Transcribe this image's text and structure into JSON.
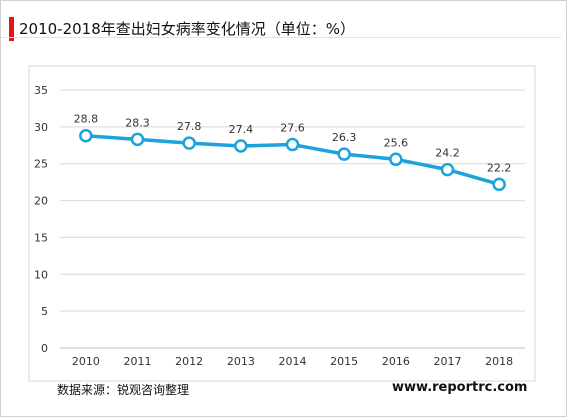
{
  "header": {
    "title": "2010-2018年查出妇女病率变化情况（单位：%）",
    "accent_color": "#e0161b"
  },
  "footer": {
    "source": "数据来源：锐观咨询整理",
    "website": "www.reportrc.com"
  },
  "chart_data": {
    "type": "line",
    "title": "2010-2018年查出妇女病率变化情况（单位：%）",
    "xlabel": "",
    "ylabel": "",
    "categories": [
      "2010",
      "2011",
      "2012",
      "2013",
      "2014",
      "2015",
      "2016",
      "2017",
      "2018"
    ],
    "series": [
      {
        "values": [
          28.8,
          28.3,
          27.8,
          27.4,
          27.6,
          26.3,
          25.6,
          24.2,
          22.2
        ],
        "color": "#1ea2dc"
      }
    ],
    "ylim": [
      0,
      35
    ],
    "yticks": [
      "0",
      "5",
      "10",
      "15",
      "20",
      "25",
      "30",
      "35"
    ],
    "data_labels": [
      "28.8",
      "28.3",
      "27.8",
      "27.4",
      "27.6",
      "26.3",
      "25.6",
      "24.2",
      "22.2"
    ],
    "grid": true,
    "legend": "none"
  }
}
